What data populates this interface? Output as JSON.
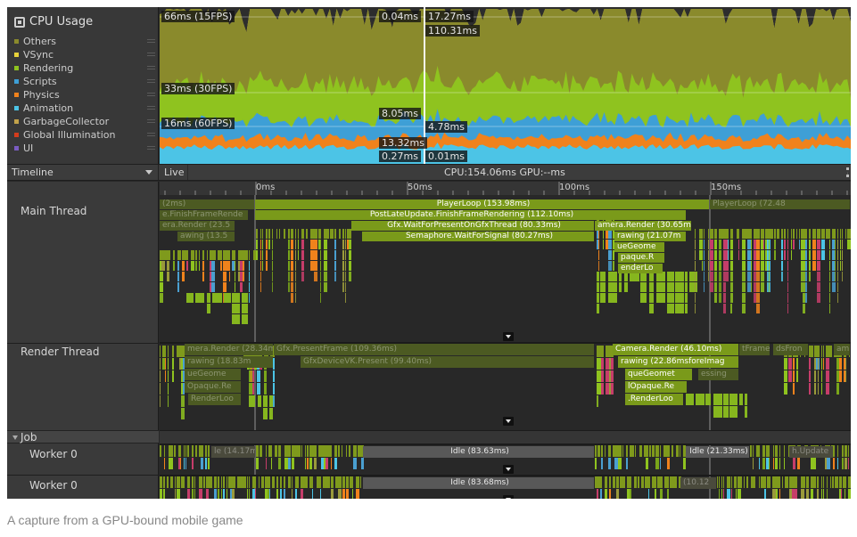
{
  "cpu_usage": {
    "title": "CPU Usage",
    "icon": "chip-icon",
    "legend": [
      {
        "label": "Others",
        "color": "#8a8a2c"
      },
      {
        "label": "VSync",
        "color": "#e8d23a"
      },
      {
        "label": "Rendering",
        "color": "#8fc31f"
      },
      {
        "label": "Scripts",
        "color": "#3e9fd6"
      },
      {
        "label": "Physics",
        "color": "#f0821c"
      },
      {
        "label": "Animation",
        "color": "#4cc4e6"
      },
      {
        "label": "GarbageCollector",
        "color": "#c2a24a"
      },
      {
        "label": "Global Illumination",
        "color": "#d43c1c"
      },
      {
        "label": "UI",
        "color": "#7a5cc2"
      }
    ],
    "threshold_labels": [
      "66ms (15FPS)",
      "33ms (30FPS)",
      "16ms (60FPS)"
    ],
    "selected_frame_labels": [
      "0.04ms",
      "17.27ms",
      "110.31ms",
      "8.05ms",
      "4.78ms",
      "13.32ms",
      "0.27ms",
      "0.01ms"
    ]
  },
  "timeline_header": {
    "view_mode": "Timeline",
    "live_label": "Live",
    "frame_stats": "CPU:154.06ms  GPU:--ms"
  },
  "ruler": {
    "labels": [
      "0ms",
      "50ms",
      "100ms",
      "150ms"
    ]
  },
  "threads": {
    "main": "Main Thread",
    "render": "Render Thread",
    "job_group": "Job",
    "worker_a": "Worker 0",
    "worker_b": "Worker 0"
  },
  "main_samples": [
    {
      "label": "(2ms)",
      "depth": 0,
      "start": 0,
      "end": 107,
      "tone": "dim"
    },
    {
      "label": "PlayerLoop (153.98ms)",
      "depth": 0,
      "start": 107,
      "end": 617,
      "tone": "major"
    },
    {
      "label": "PlayerLoop (72.48",
      "depth": 0,
      "start": 617,
      "end": 775,
      "tone": "dim"
    },
    {
      "label": "e.FinishFrameRende",
      "depth": 1,
      "start": 0,
      "end": 100,
      "tone": "dim"
    },
    {
      "label": "PostLateUpdate.FinishFrameRendering (112.10ms)",
      "depth": 1,
      "start": 107,
      "end": 591,
      "tone": "major"
    },
    {
      "label": "era.Render (23.5",
      "depth": 2,
      "start": 0,
      "end": 85,
      "tone": "dim"
    },
    {
      "label": "Gfx.WaitForPresentOnGfxThread (80.33ms)",
      "depth": 2,
      "start": 215,
      "end": 488,
      "tone": "major"
    },
    {
      "label": "amera.Render (30.65m",
      "depth": 2,
      "start": 488,
      "end": 597,
      "tone": "major"
    },
    {
      "label": "awing (13.5",
      "depth": 3,
      "start": 20,
      "end": 85,
      "tone": "dim"
    },
    {
      "label": "Semaphore.WaitForSignal (80.27ms)",
      "depth": 3,
      "start": 227,
      "end": 488,
      "tone": "major"
    },
    {
      "label": "rawing (21.07m",
      "depth": 3,
      "start": 510,
      "end": 591,
      "tone": "major"
    },
    {
      "label": "ueGeome",
      "depth": 4,
      "start": 510,
      "end": 567,
      "tone": "major"
    },
    {
      "label": "paque.R",
      "depth": 5,
      "start": 514,
      "end": 567,
      "tone": "major"
    },
    {
      "label": "enderLo",
      "depth": 6,
      "start": 514,
      "end": 565,
      "tone": "major"
    }
  ],
  "render_samples": [
    {
      "label": "mera.Render (28.34m",
      "depth": 0,
      "start": 28,
      "end": 128,
      "tone": "dim"
    },
    {
      "label": "Gfx.PresentFrame (109.36ms)",
      "depth": 0,
      "start": 128,
      "end": 488,
      "tone": "dim"
    },
    {
      "label": "Camera.Render (46.10ms)",
      "depth": 0,
      "start": 508,
      "end": 650,
      "tone": "major"
    },
    {
      "label": "tFrame",
      "depth": 0,
      "start": 650,
      "end": 685,
      "tone": "dim"
    },
    {
      "label": "dsFron",
      "depth": 0,
      "start": 688,
      "end": 728,
      "tone": "dim"
    },
    {
      "label": "am",
      "depth": 0,
      "start": 756,
      "end": 775,
      "tone": "dim"
    },
    {
      "label": "rawing (18.83m",
      "depth": 1,
      "start": 28,
      "end": 128,
      "tone": "dim"
    },
    {
      "label": "GfxDeviceVK.Present (99.40ms)",
      "depth": 1,
      "start": 158,
      "end": 488,
      "tone": "dim"
    },
    {
      "label": "rawing (22.86msforeImag",
      "depth": 1,
      "start": 514,
      "end": 650,
      "tone": "major"
    },
    {
      "label": "ueGeome",
      "depth": 2,
      "start": 28,
      "end": 92,
      "tone": "dim"
    },
    {
      "label": "queGeomet",
      "depth": 2,
      "start": 522,
      "end": 598,
      "tone": "major"
    },
    {
      "label": "essing",
      "depth": 2,
      "start": 604,
      "end": 650,
      "tone": "dim"
    },
    {
      "label": "Opaque.Re",
      "depth": 3,
      "start": 28,
      "end": 92,
      "tone": "dim"
    },
    {
      "label": "lOpaque.Re",
      "depth": 3,
      "start": 522,
      "end": 592,
      "tone": "major"
    },
    {
      "label": "RenderLoo",
      "depth": 4,
      "start": 32,
      "end": 92,
      "tone": "dim"
    },
    {
      "label": ".RenderLoo",
      "depth": 4,
      "start": 522,
      "end": 588,
      "tone": "major"
    }
  ],
  "worker_a_samples": [
    {
      "label": "le (14.17m",
      "depth": 0,
      "start": 58,
      "end": 108,
      "tone": "dim"
    },
    {
      "label": "Idle (83.63ms)",
      "depth": 0,
      "start": 228,
      "end": 488,
      "tone": "major"
    },
    {
      "label": "Idle (21.33ms)",
      "depth": 0,
      "start": 590,
      "end": 662,
      "tone": "major"
    },
    {
      "label": "h.Update",
      "depth": 0,
      "start": 706,
      "end": 756,
      "tone": "dim"
    }
  ],
  "worker_b_samples": [
    {
      "label": "Idle (83.68ms)",
      "depth": 0,
      "start": 228,
      "end": 488,
      "tone": "major"
    },
    {
      "label": "(10.12",
      "depth": 0,
      "start": 584,
      "end": 625,
      "tone": "dim"
    }
  ],
  "caption": "A capture from a GPU-bound mobile game"
}
